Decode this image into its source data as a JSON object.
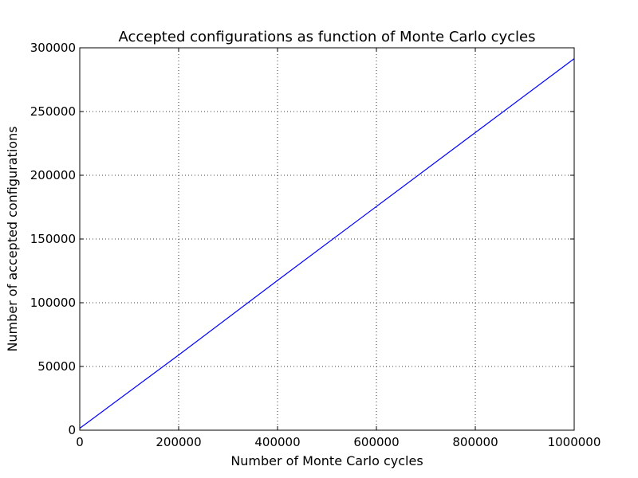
{
  "chart_data": {
    "type": "line",
    "title": "Accepted configurations as function of Monte Carlo cycles",
    "xlabel": "Number of Monte Carlo cycles",
    "ylabel": "Number of accepted configurations",
    "xlim": [
      0,
      1000000
    ],
    "ylim": [
      0,
      300000
    ],
    "xticks": [
      "0",
      "200000",
      "400000",
      "600000",
      "800000",
      "1000000"
    ],
    "yticks": [
      "0",
      "50000",
      "100000",
      "150000",
      "200000",
      "250000",
      "300000"
    ],
    "grid": true,
    "series": [
      {
        "color": "#0000ff",
        "x": [
          0,
          200000,
          400000,
          600000,
          800000,
          1000000
        ],
        "y": [
          1500,
          59000,
          117500,
          175500,
          233500,
          291500
        ]
      }
    ]
  }
}
